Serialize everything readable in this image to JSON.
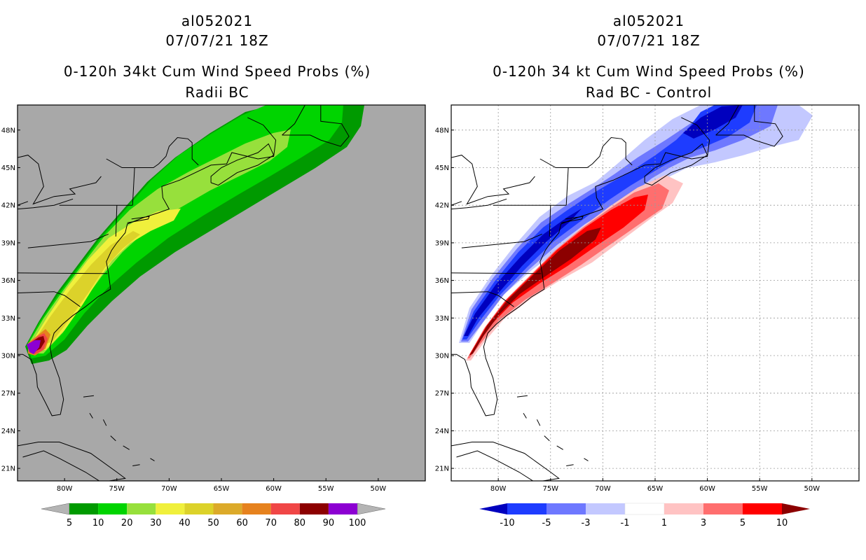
{
  "left_panel": {
    "storm_id": "al052021",
    "datetime": "07/07/21 18Z",
    "title": "0-120h 34kt Cum Wind Speed Probs (%)",
    "subtitle": "Radii BC",
    "background_color": "#a8a8a8",
    "colorbar": {
      "labels": [
        "5",
        "10",
        "20",
        "30",
        "40",
        "50",
        "60",
        "70",
        "80",
        "90",
        "100"
      ],
      "colors": [
        "#009a00",
        "#00d400",
        "#97e03c",
        "#f0f03c",
        "#dcd22a",
        "#dcaa2a",
        "#e6821e",
        "#f04646",
        "#8c0000",
        "#8c00d2"
      ]
    }
  },
  "right_panel": {
    "storm_id": "al052021",
    "datetime": "07/07/21 18Z",
    "title": "0-120h 34 kt Cum Wind Speed Probs (%)",
    "subtitle": "Rad BC - Control",
    "background_color": "#ffffff",
    "colorbar": {
      "labels": [
        "-10",
        "-5",
        "-3",
        "-1",
        "1",
        "3",
        "5",
        "10"
      ],
      "colors": [
        "#0000be",
        "#1e3cff",
        "#6e78ff",
        "#c3c8ff",
        "#ffffff",
        "#ffc3c3",
        "#ff6e6e",
        "#ff0000",
        "#8c0000"
      ]
    }
  },
  "axes": {
    "lat_labels": [
      "48N",
      "45N",
      "42N",
      "39N",
      "36N",
      "33N",
      "30N",
      "27N",
      "24N",
      "21N"
    ],
    "lon_labels": [
      "80W",
      "75W",
      "70W",
      "65W",
      "60W",
      "55W",
      "50W"
    ],
    "lat_range": [
      20,
      50
    ],
    "lon_range": [
      -84.5,
      -45.5
    ]
  }
}
